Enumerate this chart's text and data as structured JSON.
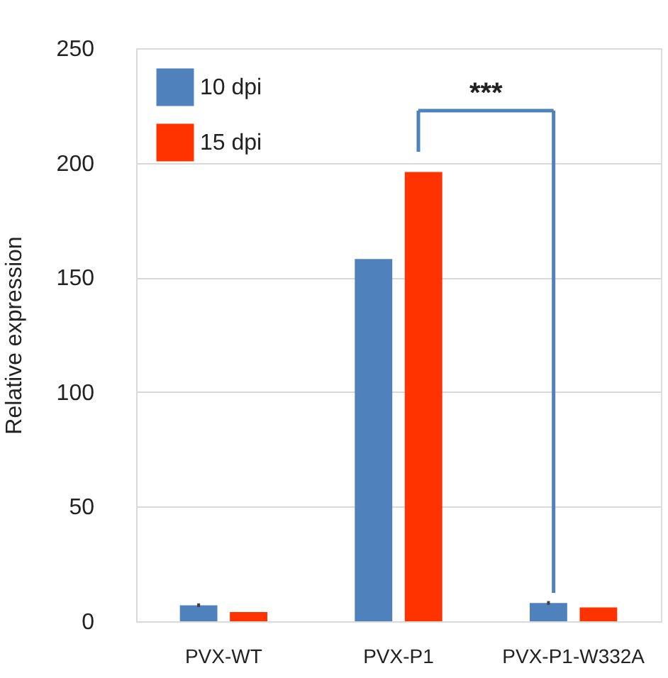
{
  "chart_data": {
    "type": "bar",
    "ylabel": "Relative expression",
    "categories": [
      "PVX-WT",
      "PVX-P1",
      "PVX-P1-W332A"
    ],
    "series": [
      {
        "name": "10 dpi",
        "color": "#4f81bd",
        "values": [
          7,
          158,
          8
        ],
        "errors": [
          0.8,
          null,
          0.8
        ]
      },
      {
        "name": "15 dpi",
        "color": "#ff3300",
        "values": [
          4,
          196,
          6
        ]
      }
    ],
    "ylim": [
      0,
      250
    ],
    "yticks": [
      0,
      50,
      100,
      150,
      200,
      250
    ],
    "grid": "y",
    "legend": "top left",
    "annotations": [
      "***"
    ]
  }
}
